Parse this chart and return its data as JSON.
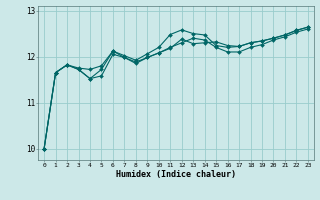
{
  "title": "",
  "xlabel": "Humidex (Indice chaleur)",
  "bg_color": "#cce8e8",
  "grid_color": "#99cccc",
  "line_color": "#006666",
  "xlim": [
    -0.5,
    23.5
  ],
  "ylim": [
    9.75,
    13.1
  ],
  "yticks": [
    10,
    11,
    12,
    13
  ],
  "xticks": [
    0,
    1,
    2,
    3,
    4,
    5,
    6,
    7,
    8,
    9,
    10,
    11,
    12,
    13,
    14,
    15,
    16,
    17,
    18,
    19,
    20,
    21,
    22,
    23
  ],
  "line1": [
    10.0,
    11.65,
    11.82,
    11.75,
    11.72,
    11.8,
    12.12,
    11.98,
    11.85,
    11.98,
    12.08,
    12.18,
    12.38,
    12.28,
    12.3,
    12.32,
    12.24,
    12.22,
    12.3,
    12.34,
    12.4,
    12.47,
    12.57,
    12.64
  ],
  "line2": [
    10.0,
    11.65,
    11.82,
    11.72,
    11.52,
    11.72,
    12.12,
    12.02,
    11.92,
    12.06,
    12.2,
    12.48,
    12.58,
    12.5,
    12.47,
    12.24,
    12.2,
    12.22,
    12.3,
    12.34,
    12.4,
    12.47,
    12.57,
    12.64
  ],
  "line3": [
    10.0,
    11.65,
    11.82,
    11.72,
    11.52,
    11.58,
    12.05,
    11.98,
    11.88,
    11.98,
    12.08,
    12.2,
    12.3,
    12.4,
    12.36,
    12.2,
    12.1,
    12.1,
    12.2,
    12.26,
    12.36,
    12.43,
    12.53,
    12.6
  ]
}
